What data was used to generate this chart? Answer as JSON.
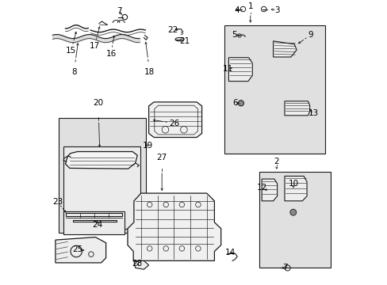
{
  "bg_color": "#ffffff",
  "line_color": "#1a1a1a",
  "shade_color": "#e0e0e0",
  "inner_shade": "#ebebeb",
  "label_fontsize": 7.5,
  "fig_width": 4.89,
  "fig_height": 3.6,
  "dpi": 100
}
